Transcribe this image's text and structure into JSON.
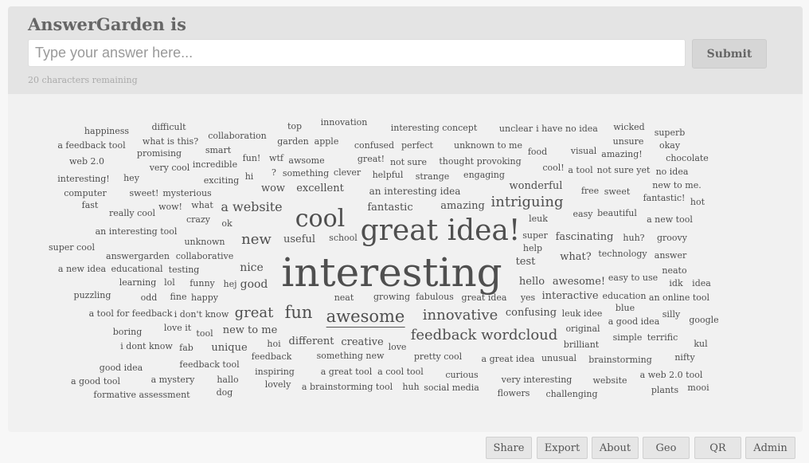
{
  "header": {
    "title": "AnswerGarden is",
    "input_placeholder": "Type your answer here...",
    "submit_label": "Submit",
    "remaining": "20 characters remaining"
  },
  "footer": {
    "share": "Share",
    "export": "Export",
    "about": "About",
    "geo": "Geo",
    "qr": "QR",
    "admin": "Admin"
  },
  "words": [
    "happiness",
    "difficult",
    "collaboration",
    "top",
    "innovation",
    "interesting concept",
    "unclear",
    "i have no idea",
    "wicked",
    "superb",
    "a feedback tool",
    "what is this?",
    "smart",
    "garden",
    "apple",
    "confused",
    "perfect",
    "unknown to me",
    "unsure",
    "okay",
    "web 2.0",
    "promising",
    "incredible",
    "fun!",
    "wtf",
    "awsome",
    "great!",
    "not sure",
    "thought provoking",
    "food",
    "visual",
    "amazing!",
    "chocolate",
    "interesting!",
    "very cool",
    "exciting",
    "hi",
    "?",
    "something",
    "clever",
    "helpful",
    "strange",
    "engaging",
    "cool!",
    "a tool",
    "not sure yet",
    "no idea",
    "computer",
    "hey",
    "sweet!",
    "mysterious",
    "wow",
    "excellent",
    "an interesting idea",
    "wonderful",
    "free",
    "sweet",
    "new to me.",
    "fantastic!",
    "fast",
    "wow!",
    "what",
    "a website",
    "fantastic",
    "amazing",
    "intriguing",
    "easy",
    "beautiful",
    "hot",
    "really cool",
    "crazy",
    "ok",
    "cool",
    "leuk",
    "a new tool",
    "an interesting tool",
    "great idea!",
    "super",
    "fascinating",
    "huh?",
    "groovy",
    "super cool",
    "unknown",
    "useful",
    "new",
    "school",
    "help",
    "technology",
    "answer",
    "answergarden",
    "collaborative",
    "what?",
    "neato",
    "a new idea",
    "educational",
    "testing",
    "nice",
    "interesting",
    "test",
    "easy to use",
    "idk",
    "idea",
    "learning",
    "lol",
    "funny",
    "hej",
    "good",
    "hello",
    "awesome!",
    "puzzling",
    "odd",
    "fine",
    "happy",
    "neat",
    "growing",
    "fabulous",
    "great idea",
    "yes",
    "interactive",
    "education",
    "an online tool",
    "a tool for feedback",
    "i don't know",
    "great",
    "fun",
    "awesome",
    "innovative",
    "confusing",
    "leuk idee",
    "blue",
    "silly",
    "google",
    "boring",
    "love it",
    "tool",
    "new to me",
    "original",
    "a good idea",
    "feedback wordcloud",
    "simple",
    "terrific",
    "kul",
    "i dont know",
    "fab",
    "unique",
    "hoi",
    "different",
    "creative",
    "love",
    "brilliant",
    "feedback",
    "something new",
    "pretty cool",
    "a great idea",
    "unusual",
    "brainstorming",
    "nifty",
    "good idea",
    "feedback tool",
    "inspiring",
    "a great tool",
    "a cool tool",
    "curious",
    "very interesting",
    "website",
    "a web 2.0 tool",
    "a good tool",
    "a mystery",
    "hallo",
    "lovely",
    "a brainstorming tool",
    "huh",
    "social media",
    "plants",
    "mooi",
    "formative assessment",
    "dog",
    "flowers",
    "challenging"
  ]
}
